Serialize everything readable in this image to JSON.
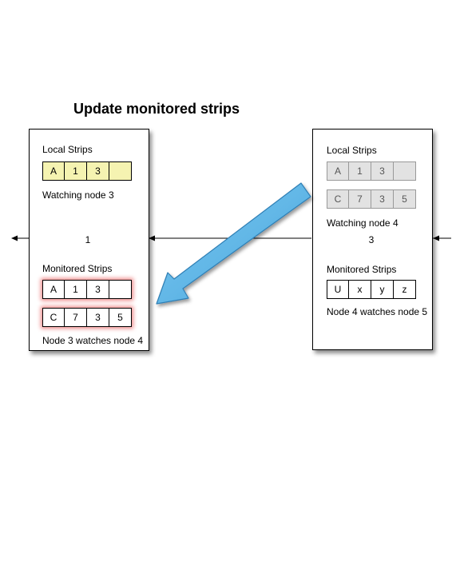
{
  "title": "Update monitored strips",
  "left_node": {
    "local_label": "Local Strips",
    "local_strip": [
      "A",
      "1",
      "3",
      ""
    ],
    "watching": "Watching node 3",
    "id": "1",
    "monitored_label": "Monitored Strips",
    "monitored_strips": [
      [
        "A",
        "1",
        "3",
        ""
      ],
      [
        "C",
        "7",
        "3",
        "5"
      ]
    ],
    "watches": "Node 3 watches node 4"
  },
  "right_node": {
    "local_label": "Local Strips",
    "local_strips": [
      [
        "A",
        "1",
        "3",
        ""
      ],
      [
        "C",
        "7",
        "3",
        "5"
      ]
    ],
    "watching": "Watching node 4",
    "id": "3",
    "monitored_label": "Monitored Strips",
    "monitored_strip": [
      "U",
      "x",
      "y",
      "z"
    ],
    "watches": "Node 4 watches node 5"
  },
  "colors": {
    "highlight_strip": "#f5f3b1",
    "faded_strip": "#e2e2e2",
    "glow": "#ef8c8c",
    "transfer_arrow": "#5ab4e6"
  }
}
